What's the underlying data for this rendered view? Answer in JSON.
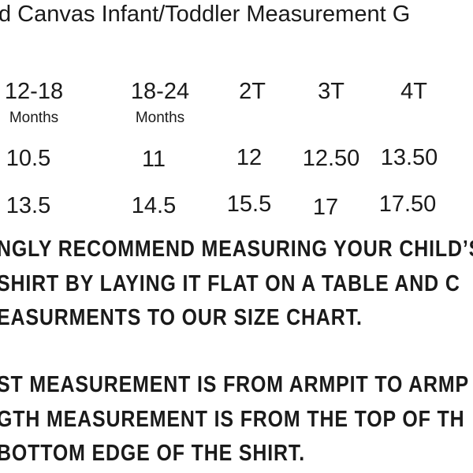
{
  "title": "d Canvas Infant/Toddler Measurement G",
  "sizes": [
    {
      "label": "12-18",
      "sub": "Months",
      "chest": "10.5",
      "length": "13.5"
    },
    {
      "label": "18-24",
      "sub": "Months",
      "chest": "11",
      "length": "14.5"
    },
    {
      "label": "2T",
      "sub": "",
      "chest": "12",
      "length": "15.5"
    },
    {
      "label": "3T",
      "sub": "",
      "chest": "12.50",
      "length": "17"
    },
    {
      "label": "4T",
      "sub": "",
      "chest": "13.50",
      "length": "17.50"
    }
  ],
  "notes": [
    "NGLY RECOMMEND MEASURING YOUR CHILD’S",
    "SHIRT BY LAYING IT FLAT ON A TABLE AND C",
    "EASURMENTS TO OUR SIZE CHART.",
    "ST MEASUREMENT IS FROM ARMPIT TO ARMP",
    "GTH MEASUREMENT IS FROM THE TOP OF TH",
    "BOTTOM EDGE OF THE SHIRT."
  ]
}
